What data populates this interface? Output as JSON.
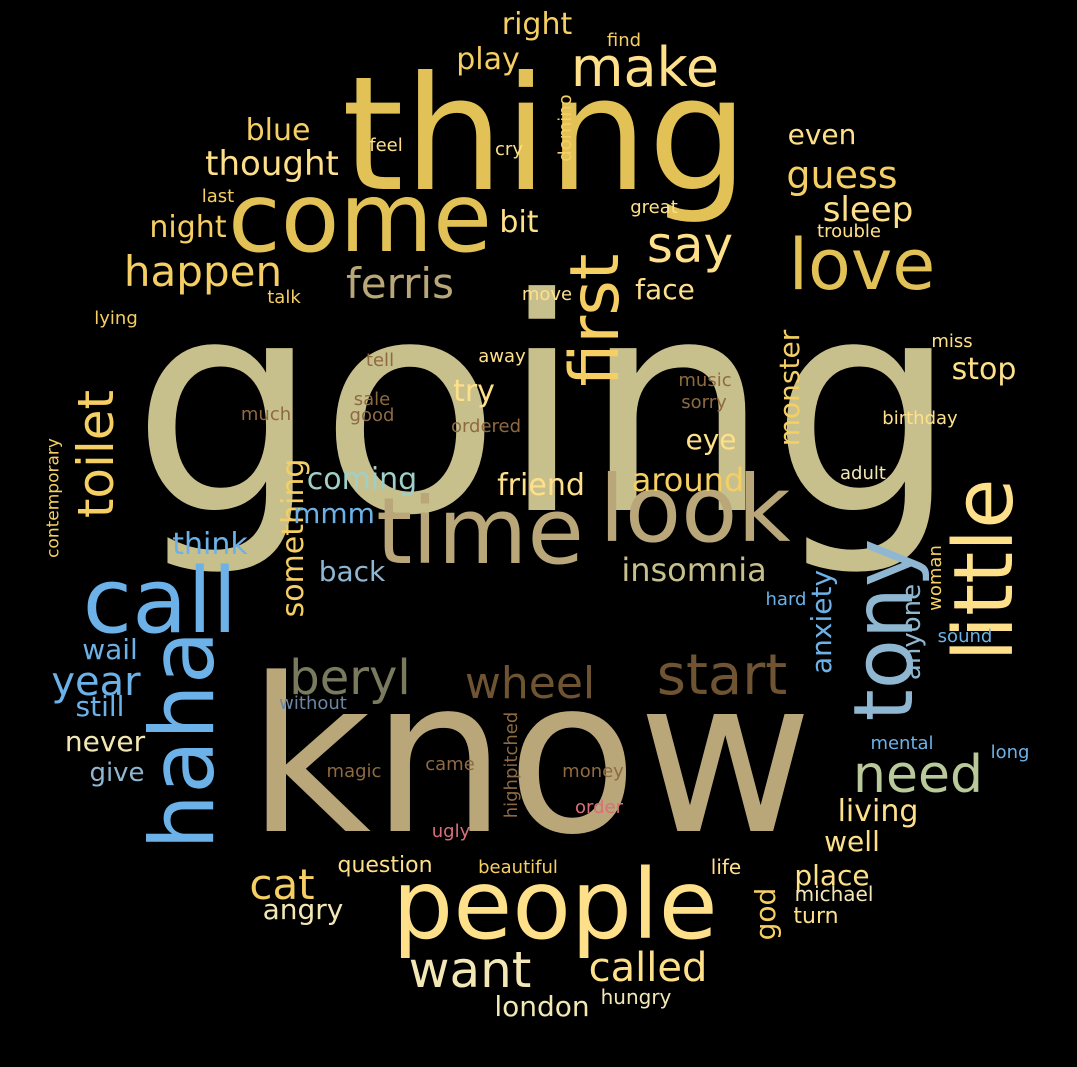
{
  "palette": {
    "khaki": "#C8C08C",
    "sand": "#B9A77A",
    "gold": "#E2C257",
    "amber": "#F5CF63",
    "butter": "#FFE08A",
    "cream": "#F3E7B5",
    "sky": "#6CB2E8",
    "steel": "#8FB7D1",
    "sage": "#B9C99A",
    "mint": "#9ED0C8",
    "brown": "#6E5432",
    "olive": "#7A7A5E",
    "rust": "#8E6A42",
    "rose": "#D8707A",
    "slate": "#6B86A3",
    "gray": "#9A9A9A"
  },
  "words": [
    {
      "text": "going",
      "color": "khaki"
    },
    {
      "text": "know",
      "color": "sand"
    },
    {
      "text": "thing",
      "color": "gold"
    },
    {
      "text": "come",
      "color": "gold"
    },
    {
      "text": "time",
      "color": "sand"
    },
    {
      "text": "look",
      "color": "sand"
    },
    {
      "text": "people",
      "color": "butter"
    },
    {
      "text": "haha",
      "color": "sky"
    },
    {
      "text": "call",
      "color": "sky"
    },
    {
      "text": "tony",
      "color": "steel"
    },
    {
      "text": "little",
      "color": "butter"
    },
    {
      "text": "love",
      "color": "gold"
    },
    {
      "text": "first",
      "color": "amber"
    },
    {
      "text": "make",
      "color": "butter"
    },
    {
      "text": "say",
      "color": "butter"
    },
    {
      "text": "need",
      "color": "sage"
    },
    {
      "text": "start",
      "color": "brown"
    },
    {
      "text": "wheel",
      "color": "brown"
    },
    {
      "text": "beryl",
      "color": "olive"
    },
    {
      "text": "toilet",
      "color": "amber"
    },
    {
      "text": "want",
      "color": "cream"
    },
    {
      "text": "called",
      "color": "butter"
    },
    {
      "text": "ferris",
      "color": "sand"
    },
    {
      "text": "happen",
      "color": "amber"
    },
    {
      "text": "guess",
      "color": "amber"
    },
    {
      "text": "sleep",
      "color": "butter"
    },
    {
      "text": "thought",
      "color": "butter"
    },
    {
      "text": "cat",
      "color": "amber"
    },
    {
      "text": "insomnia",
      "color": "khaki"
    },
    {
      "text": "something",
      "color": "amber"
    },
    {
      "text": "year",
      "color": "sky"
    },
    {
      "text": "blue",
      "color": "amber"
    },
    {
      "text": "night",
      "color": "amber"
    },
    {
      "text": "bit",
      "color": "butter"
    },
    {
      "text": "even",
      "color": "butter"
    },
    {
      "text": "right",
      "color": "amber"
    },
    {
      "text": "play",
      "color": "amber"
    },
    {
      "text": "face",
      "color": "butter"
    },
    {
      "text": "stop",
      "color": "butter"
    },
    {
      "text": "monster",
      "color": "amber"
    },
    {
      "text": "try",
      "color": "butter"
    },
    {
      "text": "eye",
      "color": "butter"
    },
    {
      "text": "friend",
      "color": "butter"
    },
    {
      "text": "around",
      "color": "amber"
    },
    {
      "text": "coming",
      "color": "mint"
    },
    {
      "text": "mmm",
      "color": "sky"
    },
    {
      "text": "think",
      "color": "sky"
    },
    {
      "text": "back",
      "color": "steel"
    },
    {
      "text": "wail",
      "color": "sky"
    },
    {
      "text": "still",
      "color": "sky"
    },
    {
      "text": "never",
      "color": "cream"
    },
    {
      "text": "give",
      "color": "steel"
    },
    {
      "text": "anxiety",
      "color": "sky"
    },
    {
      "text": "anyone",
      "color": "steel"
    },
    {
      "text": "living",
      "color": "butter"
    },
    {
      "text": "well",
      "color": "butter"
    },
    {
      "text": "place",
      "color": "butter"
    },
    {
      "text": "god",
      "color": "amber"
    },
    {
      "text": "angry",
      "color": "cream"
    },
    {
      "text": "question",
      "color": "butter"
    },
    {
      "text": "london",
      "color": "cream"
    },
    {
      "text": "hungry",
      "color": "cream"
    },
    {
      "text": "beautiful",
      "color": "amber"
    },
    {
      "text": "life",
      "color": "butter"
    },
    {
      "text": "michael",
      "color": "cream"
    },
    {
      "text": "turn",
      "color": "butter"
    },
    {
      "text": "find",
      "color": "amber"
    },
    {
      "text": "domino",
      "color": "amber"
    },
    {
      "text": "feel",
      "color": "butter"
    },
    {
      "text": "cry",
      "color": "butter"
    },
    {
      "text": "last",
      "color": "amber"
    },
    {
      "text": "great",
      "color": "butter"
    },
    {
      "text": "trouble",
      "color": "butter"
    },
    {
      "text": "talk",
      "color": "amber"
    },
    {
      "text": "move",
      "color": "butter"
    },
    {
      "text": "lying",
      "color": "amber"
    },
    {
      "text": "miss",
      "color": "butter"
    },
    {
      "text": "tell",
      "color": "rust"
    },
    {
      "text": "away",
      "color": "butter"
    },
    {
      "text": "music",
      "color": "rust"
    },
    {
      "text": "sale",
      "color": "rust"
    },
    {
      "text": "good",
      "color": "rust"
    },
    {
      "text": "sorry",
      "color": "rust"
    },
    {
      "text": "much",
      "color": "rust"
    },
    {
      "text": "ordered",
      "color": "rust"
    },
    {
      "text": "birthday",
      "color": "butter"
    },
    {
      "text": "adult",
      "color": "cream"
    },
    {
      "text": "contemporary",
      "color": "amber"
    },
    {
      "text": "woman",
      "color": "amber"
    },
    {
      "text": "hard",
      "color": "sky"
    },
    {
      "text": "sound",
      "color": "sky"
    },
    {
      "text": "mental",
      "color": "sky"
    },
    {
      "text": "long",
      "color": "sky"
    },
    {
      "text": "without",
      "color": "slate"
    },
    {
      "text": "highpitched",
      "color": "rust"
    },
    {
      "text": "magic",
      "color": "rust"
    },
    {
      "text": "came",
      "color": "rust"
    },
    {
      "text": "money",
      "color": "rust"
    },
    {
      "text": "order",
      "color": "rose"
    },
    {
      "text": "ugly",
      "color": "rose"
    }
  ]
}
